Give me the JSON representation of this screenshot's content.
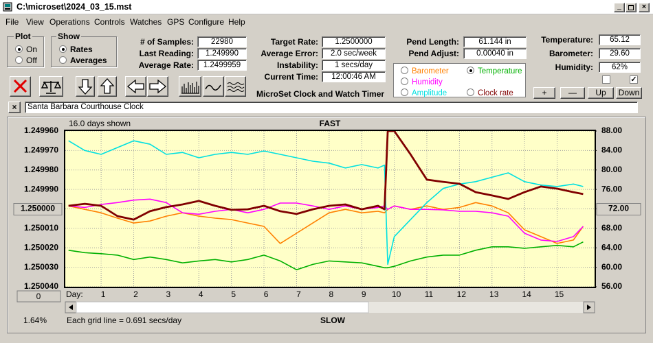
{
  "window": {
    "title": "C:\\microset\\2024_03_15.mst"
  },
  "menu": [
    "File",
    "View",
    "Operations",
    "Controls",
    "Watches",
    "GPS",
    "Configure",
    "Help"
  ],
  "plot": {
    "label": "Plot",
    "options": [
      "On",
      "Off"
    ]
  },
  "show": {
    "label": "Show",
    "options": [
      "Rates",
      "Averages"
    ]
  },
  "stats": [
    {
      "label": "# of Samples:",
      "value": "22980"
    },
    {
      "label": "Last Reading:",
      "value": "1.249990"
    },
    {
      "label": "Average Rate:",
      "value": "1.2499959"
    }
  ],
  "rates": [
    {
      "label": "Target Rate:",
      "value": "1.2500000"
    },
    {
      "label": "Average Error:",
      "value": "2.0 sec/week"
    },
    {
      "label": "Instability:",
      "value": "1 secs/day"
    },
    {
      "label": "Current Time:",
      "value": "12:00:46 AM"
    }
  ],
  "pend": [
    {
      "label": "Pend Length:",
      "value": "61.144 in"
    },
    {
      "label": "Pend Adjust:",
      "value": "0.00040 in"
    }
  ],
  "env": [
    {
      "label": "Temperature:",
      "value": "65.12"
    },
    {
      "label": "Barometer:",
      "value": "29.60"
    },
    {
      "label": "Humidity:",
      "value": "62%"
    }
  ],
  "app_title": "MicroSet Clock and Watch Timer",
  "buttons": [
    "+",
    "—",
    "Up",
    "Down"
  ],
  "clock_name": "Santa Barbara Courthouse Clock",
  "chart_data": {
    "type": "line",
    "title": "FAST",
    "bottom_label": "SLOW",
    "days_shown": "16.0 days shown",
    "x_label": "Day:",
    "grid_note": "Each grid line = 0.691 secs/day",
    "offset_button": "0",
    "percent": "1.64%",
    "selected_series": 1,
    "grid": true,
    "x": [
      0,
      0.5,
      1,
      1.5,
      2,
      2.5,
      3,
      3.5,
      4,
      4.5,
      5,
      5.5,
      6,
      6.5,
      7,
      7.5,
      8,
      8.5,
      9,
      9.5,
      9.7,
      9.8,
      10,
      10.5,
      11,
      11.5,
      12,
      12.5,
      13,
      13.5,
      14,
      14.5,
      15,
      15.5,
      15.8
    ],
    "xlim": [
      -0.1,
      16.15
    ],
    "xticks": [
      1,
      2,
      3,
      4,
      5,
      6,
      7,
      8,
      9,
      10,
      11,
      12,
      13,
      14,
      15
    ],
    "ylim": [
      1.25004,
      1.24996
    ],
    "yticks": [
      {
        "value": 1.24996,
        "label": "1.249960"
      },
      {
        "value": 1.24997,
        "label": "1.249970"
      },
      {
        "value": 1.24998,
        "label": "1.249980"
      },
      {
        "value": 1.24999,
        "label": "1.249990"
      },
      {
        "value": 1.25,
        "label": "1.250000"
      },
      {
        "value": 1.25001,
        "label": "1.250010"
      },
      {
        "value": 1.25002,
        "label": "1.250020"
      },
      {
        "value": 1.25003,
        "label": "1.250030"
      },
      {
        "value": 1.25004,
        "label": "1.250040"
      }
    ],
    "y2lim": [
      56,
      88
    ],
    "y2ticks": [
      {
        "value": 88,
        "label": "88.00"
      },
      {
        "value": 84,
        "label": "84.00"
      },
      {
        "value": 80,
        "label": "80.00"
      },
      {
        "value": 76,
        "label": "76.00"
      },
      {
        "value": 72,
        "label": "72.00"
      },
      {
        "value": 68,
        "label": "68.00"
      },
      {
        "value": 64,
        "label": "64.00"
      },
      {
        "value": 60,
        "label": "60.00"
      },
      {
        "value": 56,
        "label": "56.00"
      }
    ],
    "series": [
      {
        "name": "Barometer",
        "color": "#ff8000",
        "axis": "y2",
        "values": [
          72.6,
          71.9,
          71.2,
          70.1,
          69.1,
          69.5,
          70.5,
          71.2,
          70.5,
          70.1,
          69.8,
          69.1,
          68.4,
          64.9,
          67.0,
          69.1,
          71.2,
          71.9,
          71.2,
          71.5,
          71.2,
          71.9,
          72.6,
          71.9,
          72.6,
          71.9,
          72.3,
          73.3,
          72.6,
          71.2,
          67.7,
          66.3,
          64.9,
          65.6,
          68.4
        ]
      },
      {
        "name": "Temperature",
        "color": "#00b000",
        "axis": "y2",
        "values": [
          63.5,
          63.0,
          62.8,
          62.5,
          61.6,
          62.1,
          61.6,
          60.9,
          61.3,
          61.6,
          61.1,
          61.6,
          62.5,
          61.3,
          59.5,
          60.6,
          61.3,
          61.1,
          60.9,
          60.2,
          59.9,
          59.9,
          60.2,
          61.3,
          62.1,
          62.5,
          62.5,
          63.5,
          64.2,
          64.2,
          63.9,
          64.2,
          64.5,
          64.2,
          65.2
        ]
      },
      {
        "name": "Humidity",
        "color": "#ff00ff",
        "axis": "y2",
        "values": [
          72.6,
          72.3,
          72.9,
          73.3,
          73.8,
          74.0,
          73.3,
          71.2,
          70.9,
          71.5,
          71.9,
          71.2,
          71.9,
          73.2,
          73.2,
          72.6,
          71.9,
          72.6,
          71.9,
          72.3,
          72.6,
          71.9,
          72.6,
          71.9,
          71.9,
          71.8,
          71.5,
          71.5,
          71.2,
          70.5,
          67.0,
          65.6,
          65.3,
          66.3,
          68.4
        ]
      },
      {
        "name": "Amplitude",
        "color": "#00e0e0",
        "axis": "y2",
        "values": [
          86.0,
          84.0,
          83.2,
          84.6,
          86.0,
          85.3,
          83.2,
          83.6,
          82.5,
          83.2,
          83.6,
          83.2,
          83.9,
          83.2,
          82.5,
          81.8,
          81.4,
          80.4,
          81.1,
          80.4,
          81.0,
          60.6,
          66.3,
          69.8,
          73.3,
          76.2,
          77.1,
          77.6,
          78.5,
          79.4,
          77.6,
          76.9,
          76.6,
          77.1,
          76.6
        ]
      },
      {
        "name": "Clock rate",
        "color": "#800000",
        "axis": "y",
        "values": [
          1.2499984,
          1.2499974,
          1.2499984,
          1.2500037,
          1.2500055,
          1.2500012,
          1.2499991,
          1.2499977,
          1.2499959,
          1.2499984,
          1.2500005,
          1.2500002,
          1.2499984,
          1.2500012,
          1.2500026,
          1.2500002,
          1.2499984,
          1.2499977,
          1.2500002,
          1.2499984,
          1.2500002,
          1.24996,
          1.24996,
          1.249972,
          1.249985,
          1.2499861,
          1.2499871,
          1.2499914,
          1.2499931,
          1.2499949,
          1.2499914,
          1.2499885,
          1.2499896,
          1.2499914,
          1.2499924
        ]
      }
    ]
  }
}
